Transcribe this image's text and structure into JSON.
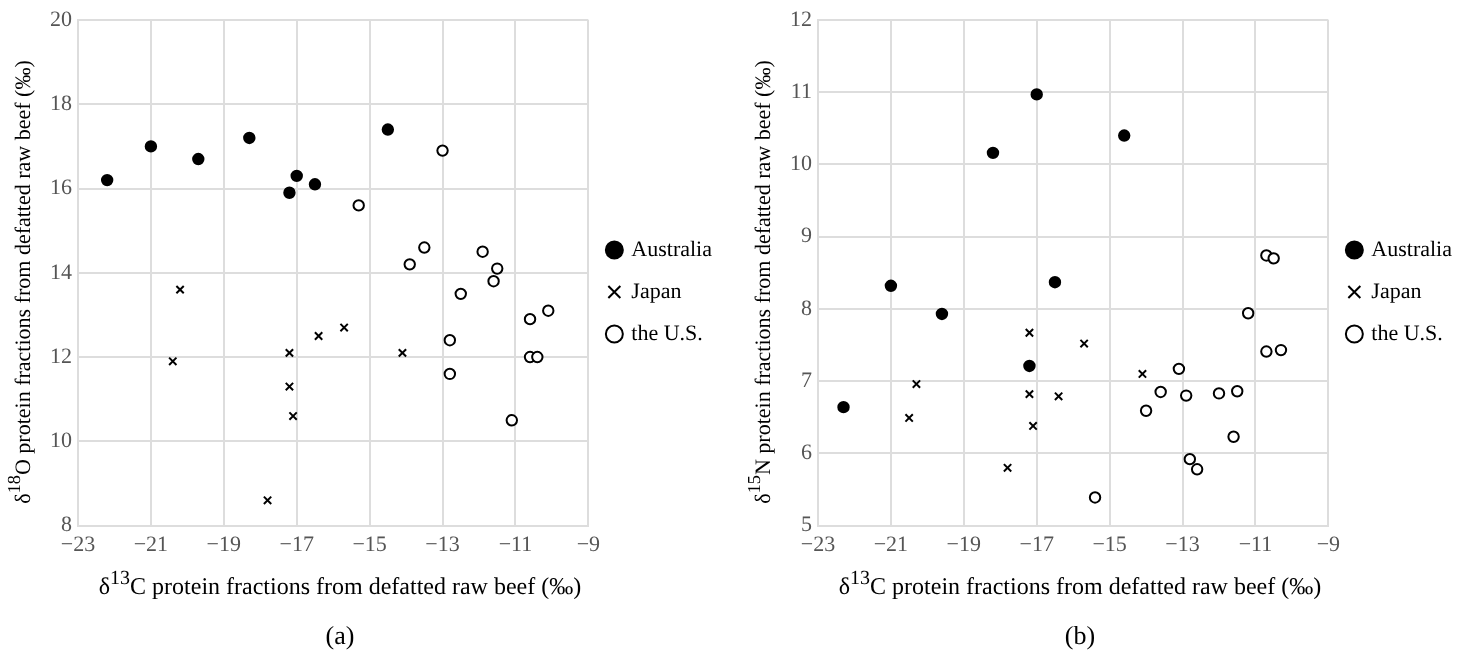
{
  "chart_data": [
    {
      "type": "scatter",
      "title": "(a)",
      "xlabel": "δ$^{13}$C protein fractions from defatted raw beef (‰)",
      "ylabel": "δ$^{18}$O protein fractions from defatted raw beef (‰)",
      "xlim": [
        -23,
        -9
      ],
      "xticks": [
        -23,
        -21,
        -19,
        -17,
        -15,
        -13,
        -11,
        -9
      ],
      "ylim": [
        8,
        20
      ],
      "yticks": [
        8,
        10,
        12,
        14,
        16,
        18,
        20
      ],
      "grid": true,
      "legend": "right",
      "series": [
        {
          "name": "Australia",
          "color": "#000000",
          "marker": "circle",
          "x": [
            -22.2,
            -21,
            -19.7,
            -18.3,
            -17.2,
            -17,
            -16.5,
            -14.5
          ],
          "values": [
            16.2,
            17.0,
            16.7,
            17.2,
            15.9,
            16.3,
            16.1,
            17.4
          ]
        },
        {
          "name": "Japan",
          "color": "#000000",
          "marker": "cross",
          "x": [
            -20.2,
            -20.4,
            -17.2,
            -17.2,
            -17.1,
            -16.4,
            -15.7,
            -14.1,
            -17.8
          ],
          "values": [
            13.6,
            11.9,
            12.1,
            11.3,
            10.6,
            12.5,
            12.7,
            12.1,
            8.6
          ]
        },
        {
          "name": "the U.S.",
          "color": "#ffffff",
          "marker": "circle",
          "x": [
            -13,
            -15.3,
            -13.5,
            -13.9,
            -11.9,
            -11.5,
            -11.6,
            -12.5,
            -10.6,
            -10.1,
            -12.8,
            -10.6,
            -10.4,
            -12.8,
            -11.1
          ],
          "values": [
            16.9,
            15.6,
            14.6,
            14.2,
            14.5,
            14.1,
            13.8,
            13.5,
            12.9,
            13.1,
            12.4,
            12.0,
            12.0,
            11.6,
            10.5
          ]
        }
      ]
    },
    {
      "type": "scatter",
      "title": "(b)",
      "xlabel": "δ$^{13}$C protein fractions from defatted raw beef (‰)",
      "ylabel": "δ$^{15}$N protein fractions from defatted raw beef (‰)",
      "xlim": [
        -23,
        -9
      ],
      "xticks": [
        -23,
        -21,
        -19,
        -17,
        -15,
        -13,
        -11,
        -9
      ],
      "ylim": [
        5,
        12
      ],
      "yticks": [
        5,
        6,
        7,
        8,
        9,
        10,
        11,
        12
      ],
      "grid": true,
      "legend": "right",
      "series": [
        {
          "name": "Australia",
          "color": "#000000",
          "marker": "circle",
          "x": [
            -22.3,
            -21,
            -19.6,
            -18.2,
            -17,
            -14.6,
            -16.5,
            -17.2
          ],
          "values": [
            6.64,
            8.32,
            7.93,
            10.16,
            10.97,
            10.4,
            8.37,
            7.21
          ]
        },
        {
          "name": "Japan",
          "color": "#000000",
          "marker": "cross",
          "x": [
            -20.3,
            -20.5,
            -17.2,
            -17.2,
            -17.1,
            -16.4,
            -15.7,
            -14.1,
            -17.8
          ],
          "values": [
            6.96,
            6.49,
            7.67,
            6.82,
            6.38,
            6.79,
            7.52,
            7.1,
            5.8
          ]
        },
        {
          "name": "the U.S.",
          "color": "#ffffff",
          "marker": "circle",
          "x": [
            -15.4,
            -14,
            -13.6,
            -13.1,
            -12.9,
            -12.8,
            -12.6,
            -12,
            -11.5,
            -11.6,
            -11.2,
            -10.7,
            -10.3,
            -10.7,
            -10.5
          ],
          "values": [
            5.39,
            6.59,
            6.85,
            7.17,
            6.8,
            5.92,
            5.78,
            6.83,
            6.86,
            6.23,
            7.94,
            7.41,
            7.43,
            8.74,
            8.7
          ]
        }
      ]
    }
  ]
}
